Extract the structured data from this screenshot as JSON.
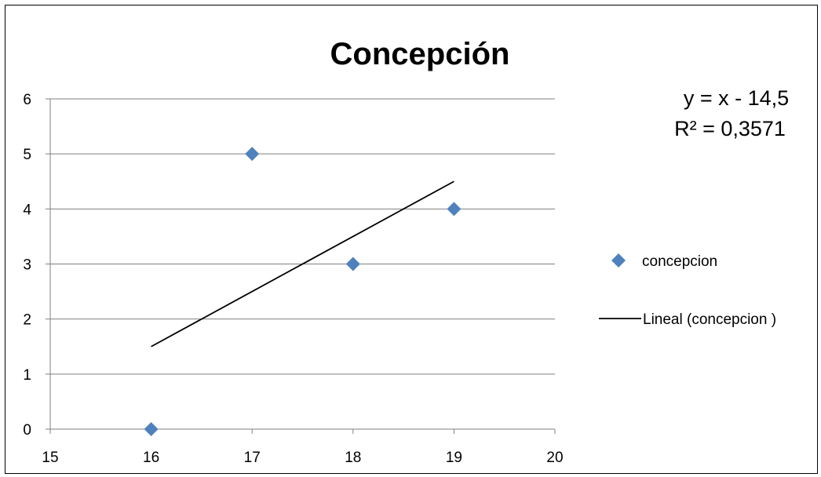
{
  "chart_data": {
    "type": "scatter",
    "title": "Concepción",
    "xlabel": "",
    "ylabel": "",
    "xlim": [
      15,
      20
    ],
    "ylim": [
      0,
      6
    ],
    "x_ticks": [
      "15",
      "16",
      "17",
      "18",
      "19",
      "20"
    ],
    "y_ticks": [
      "0",
      "1",
      "2",
      "3",
      "4",
      "5",
      "6"
    ],
    "grid": "horizontal",
    "legend_position": "right",
    "series": [
      {
        "name": "concepcion",
        "marker": "diamond",
        "color": "#4f81bd",
        "points": [
          {
            "x": 16,
            "y": 0
          },
          {
            "x": 17,
            "y": 5
          },
          {
            "x": 18,
            "y": 3
          },
          {
            "x": 19,
            "y": 4
          }
        ]
      }
    ],
    "trendline": {
      "name": "Lineal (concepcion )",
      "color": "#000000",
      "x_start": 16,
      "x_end": 19,
      "slope": 1,
      "intercept": -14.5,
      "equation": "y = x - 14,5",
      "r_squared": "R² = 0,3571"
    }
  }
}
